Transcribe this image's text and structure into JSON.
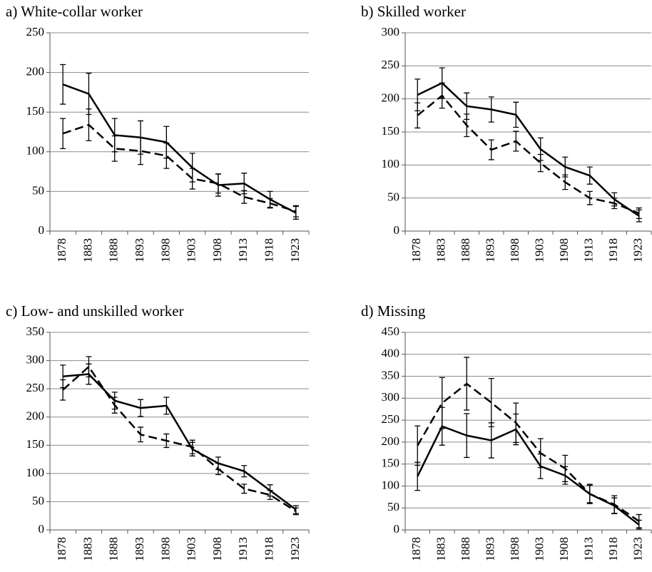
{
  "chart_data": [
    {
      "type": "line",
      "title": "a) White-collar worker",
      "categories": [
        "1878",
        "1883",
        "1888",
        "1893",
        "1898",
        "1903",
        "1908",
        "1913",
        "1918",
        "1923"
      ],
      "ylim": [
        0,
        250
      ],
      "yticks": [
        0,
        50,
        100,
        150,
        200,
        250
      ],
      "grid": true,
      "series": [
        {
          "color": "#000000",
          "line_style": "solid",
          "values": [
            185,
            173,
            121,
            118,
            112,
            80,
            58,
            60,
            40,
            23
          ],
          "errors": [
            25,
            26,
            21,
            21,
            20,
            18,
            14,
            13,
            10,
            8
          ]
        },
        {
          "color": "#000000",
          "line_style": "dashed",
          "values": [
            123,
            134,
            104,
            101,
            95,
            66,
            60,
            43,
            35,
            25
          ],
          "errors": [
            19,
            20,
            16,
            17,
            16,
            13,
            12,
            8,
            6,
            7
          ]
        }
      ]
    },
    {
      "type": "line",
      "title": "b) Skilled worker",
      "categories": [
        "1878",
        "1883",
        "1888",
        "1893",
        "1898",
        "1903",
        "1908",
        "1913",
        "1918",
        "1923"
      ],
      "ylim": [
        0,
        300
      ],
      "yticks": [
        0,
        50,
        100,
        150,
        200,
        250,
        300
      ],
      "grid": true,
      "series": [
        {
          "color": "#000000",
          "line_style": "solid",
          "values": [
            206,
            224,
            189,
            184,
            176,
            124,
            97,
            84,
            48,
            23
          ],
          "errors": [
            24,
            23,
            20,
            19,
            19,
            17,
            15,
            13,
            10,
            9
          ]
        },
        {
          "color": "#000000",
          "line_style": "dashed",
          "values": [
            175,
            205,
            160,
            123,
            136,
            103,
            74,
            50,
            42,
            27
          ],
          "errors": [
            19,
            19,
            17,
            15,
            15,
            13,
            11,
            10,
            8,
            8
          ]
        }
      ]
    },
    {
      "type": "line",
      "title": "c) Low- and unskilled worker",
      "categories": [
        "1878",
        "1883",
        "1888",
        "1893",
        "1898",
        "1903",
        "1908",
        "1913",
        "1918",
        "1923"
      ],
      "ylim": [
        0,
        350
      ],
      "yticks": [
        0,
        50,
        100,
        150,
        200,
        250,
        300,
        350
      ],
      "grid": true,
      "series": [
        {
          "color": "#000000",
          "line_style": "solid",
          "values": [
            272,
            276,
            229,
            216,
            220,
            143,
            118,
            104,
            70,
            36
          ],
          "errors": [
            20,
            18,
            15,
            15,
            15,
            12,
            11,
            10,
            10,
            7
          ]
        },
        {
          "color": "#000000",
          "line_style": "dashed",
          "values": [
            248,
            289,
            221,
            169,
            158,
            147,
            108,
            73,
            62,
            33
          ],
          "errors": [
            18,
            18,
            14,
            13,
            12,
            12,
            10,
            8,
            8,
            6
          ]
        }
      ]
    },
    {
      "type": "line",
      "title": "d) Missing",
      "categories": [
        "1878",
        "1883",
        "1888",
        "1893",
        "1898",
        "1903",
        "1908",
        "1913",
        "1918",
        "1923"
      ],
      "ylim": [
        0,
        450
      ],
      "yticks": [
        0,
        50,
        100,
        150,
        200,
        250,
        300,
        350,
        400,
        450
      ],
      "grid": true,
      "series": [
        {
          "color": "#000000",
          "line_style": "solid",
          "values": [
            122,
            236,
            215,
            204,
            229,
            145,
            124,
            82,
            55,
            12
          ],
          "errors": [
            32,
            43,
            50,
            40,
            35,
            28,
            20,
            20,
            18,
            10
          ]
        },
        {
          "color": "#000000",
          "line_style": "dashed",
          "values": [
            192,
            289,
            333,
            290,
            244,
            175,
            140,
            82,
            58,
            20
          ],
          "errors": [
            45,
            58,
            60,
            55,
            45,
            33,
            30,
            22,
            20,
            15
          ]
        }
      ]
    }
  ]
}
